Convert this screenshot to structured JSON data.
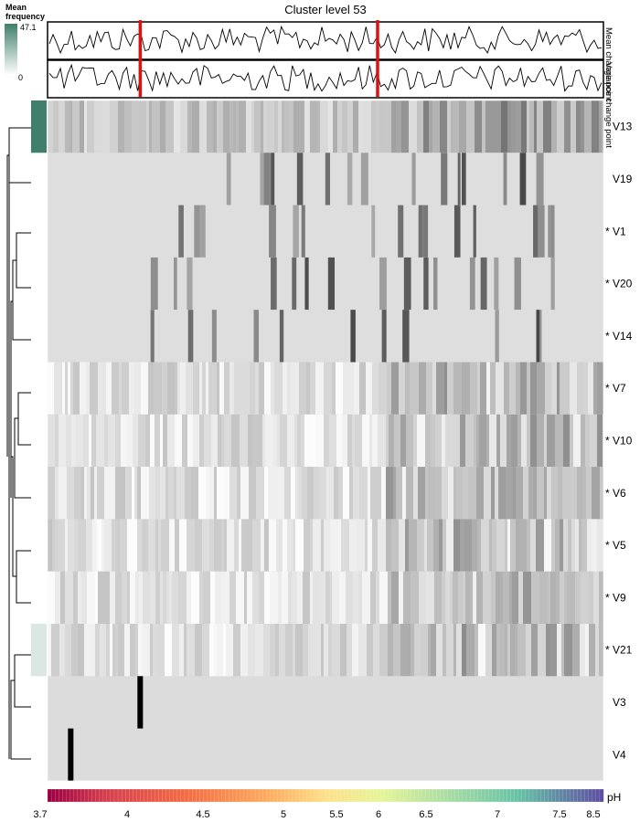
{
  "chart_data": {
    "type": "heatmap",
    "title": "Cluster level 53",
    "legend": {
      "title_line1": "Mean",
      "title_line2": "frequency",
      "max_label": "47.1",
      "min_label": "0",
      "max_value": 47.1,
      "min_value": 0,
      "color_high": "#3f7f6b",
      "color_low": "#ffffff"
    },
    "side_label_mean": "Mean change point",
    "side_label_variance": "Variance change point",
    "change_points_ph": [
      4.5,
      6.55
    ],
    "change_point_color": "#e01010",
    "rows": [
      {
        "label": "V13",
        "mean_frequency": 47.1
      },
      {
        "label": "V19",
        "mean_frequency": 0
      },
      {
        "label": "* V1",
        "mean_frequency": 0
      },
      {
        "label": "* V20",
        "mean_frequency": 0
      },
      {
        "label": "* V14",
        "mean_frequency": 0
      },
      {
        "label": "* V7",
        "mean_frequency": 0
      },
      {
        "label": "* V10",
        "mean_frequency": 0
      },
      {
        "label": "* V6",
        "mean_frequency": 0
      },
      {
        "label": "* V5",
        "mean_frequency": 0
      },
      {
        "label": "* V9",
        "mean_frequency": 0
      },
      {
        "label": "* V21",
        "mean_frequency": 9
      },
      {
        "label": "V3",
        "mean_frequency": 0
      },
      {
        "label": "V4",
        "mean_frequency": 0
      }
    ],
    "x_axis": {
      "label": "pH",
      "range": [
        3.7,
        8.5
      ],
      "tick_values": [
        3.7,
        4,
        4.5,
        5,
        5.5,
        6,
        6.5,
        7,
        7.5,
        8.5
      ],
      "tick_labels": [
        "3.7",
        "4",
        "4.5",
        "5",
        "5.5",
        "6",
        "6.5",
        "7",
        "7.5",
        "8.5"
      ]
    },
    "dendrogram_present": true,
    "grid": false
  }
}
